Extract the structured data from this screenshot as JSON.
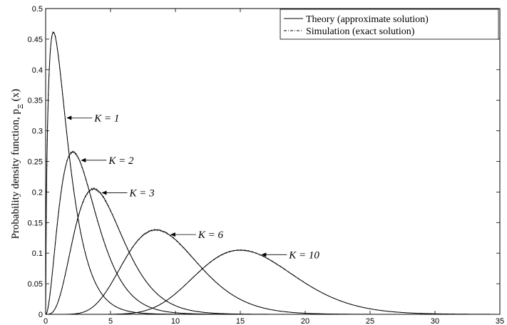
{
  "chart_data": {
    "type": "line",
    "title": "",
    "xlabel": "",
    "ylabel": "Probability density function, p_Ξ (x)",
    "xlim": [
      0,
      35
    ],
    "ylim": [
      0,
      0.5
    ],
    "xticks": [
      0,
      5,
      10,
      15,
      20,
      25,
      30,
      35
    ],
    "yticks": [
      0,
      0.05,
      0.1,
      0.15,
      0.2,
      0.25,
      0.3,
      0.35,
      0.4,
      0.45,
      0.5
    ],
    "ytick_labels": [
      "0",
      "0.05",
      "0.1",
      "0.15",
      "0.2",
      "0.25",
      "0.3",
      "0.35",
      "0.4",
      "0.45",
      "0.5"
    ],
    "grid": false,
    "legend_position": "top-right",
    "legend": [
      {
        "label": "Theory (approximate solution)",
        "style": "solid"
      },
      {
        "label": "Simulation (exact solution)",
        "style": "dashdot"
      }
    ],
    "series": [
      {
        "K": 1,
        "label": "K = 1",
        "annotation_x": 1.5,
        "peak_x": 0.6,
        "peak_y": 0.46
      },
      {
        "K": 2,
        "label": "K = 2",
        "annotation_x": 2.6,
        "peak_x": 2.1,
        "peak_y": 0.265
      },
      {
        "K": 3,
        "label": "K = 3",
        "annotation_x": 4.2,
        "peak_x": 3.7,
        "peak_y": 0.205
      },
      {
        "K": 6,
        "label": "K = 6",
        "annotation_x": 9.5,
        "peak_x": 8.5,
        "peak_y": 0.138
      },
      {
        "K": 10,
        "label": "K = 10",
        "annotation_x": 16.5,
        "peak_x": 15.0,
        "peak_y": 0.105
      }
    ]
  }
}
